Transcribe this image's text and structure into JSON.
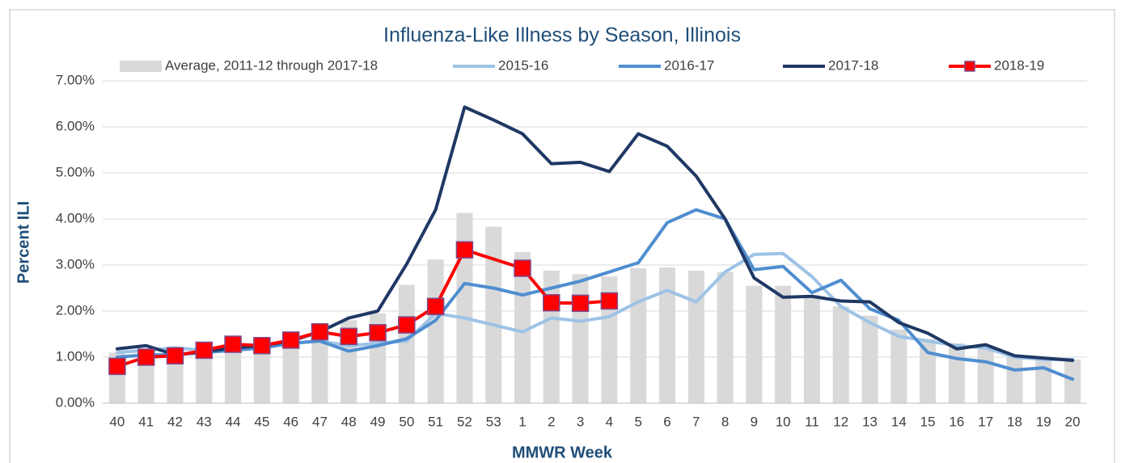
{
  "chart_data": {
    "type": "bar",
    "title": "Influenza-Like Illness by Season, Illinois",
    "x_label": "MMWR Week",
    "y_label": "Percent ILI",
    "categories": [
      "40",
      "41",
      "42",
      "43",
      "44",
      "45",
      "46",
      "47",
      "48",
      "49",
      "50",
      "51",
      "52",
      "53",
      "1",
      "2",
      "3",
      "4",
      "5",
      "6",
      "7",
      "8",
      "9",
      "10",
      "11",
      "12",
      "13",
      "14",
      "15",
      "16",
      "17",
      "18",
      "19",
      "20"
    ],
    "ylim": [
      0,
      7
    ],
    "yticks": [
      {
        "value": 0,
        "label": "0.00%"
      },
      {
        "value": 1,
        "label": "1.00%"
      },
      {
        "value": 2,
        "label": "2.00%"
      },
      {
        "value": 3,
        "label": "3.00%"
      },
      {
        "value": 4,
        "label": "4.00%"
      },
      {
        "value": 5,
        "label": "5.00%"
      },
      {
        "value": 6,
        "label": "6.00%"
      },
      {
        "value": 7,
        "label": "7.00%"
      }
    ],
    "grid": true,
    "legend": "top",
    "series": [
      {
        "name": "Average, 2011-12 through 2017-18",
        "type": "bar",
        "color": "#d9d9d9",
        "values": [
          1.1,
          1.1,
          1.15,
          1.15,
          1.2,
          1.25,
          1.35,
          1.45,
          1.8,
          1.95,
          2.57,
          3.12,
          4.13,
          3.83,
          3.28,
          2.88,
          2.8,
          2.75,
          2.93,
          2.95,
          2.88,
          2.85,
          2.55,
          2.55,
          2.35,
          2.1,
          1.9,
          1.6,
          1.4,
          1.3,
          1.2,
          1.0,
          0.95,
          0.95
        ]
      },
      {
        "name": "2015-16",
        "type": "line",
        "color": "#9dc3e6",
        "values": [
          1.1,
          1.15,
          1.2,
          1.15,
          1.2,
          1.2,
          1.3,
          1.35,
          1.25,
          1.3,
          1.35,
          1.95,
          1.85,
          1.7,
          1.55,
          1.85,
          1.78,
          1.88,
          2.2,
          2.45,
          2.2,
          2.85,
          3.23,
          3.25,
          2.75,
          2.1,
          1.75,
          1.45,
          1.35,
          1.25,
          1.2,
          1.0,
          0.95,
          0.95
        ]
      },
      {
        "name": "2016-17",
        "type": "line",
        "color": "#4f8ed0",
        "values": [
          1.0,
          1.05,
          1.05,
          1.1,
          1.15,
          1.2,
          1.3,
          1.35,
          1.13,
          1.25,
          1.4,
          1.8,
          2.6,
          2.5,
          2.35,
          2.5,
          2.65,
          2.85,
          3.05,
          3.92,
          4.2,
          4.0,
          2.9,
          2.97,
          2.4,
          2.67,
          2.05,
          1.8,
          1.1,
          0.97,
          0.9,
          0.72,
          0.77,
          0.52
        ]
      },
      {
        "name": "2017-18",
        "type": "line",
        "color": "#1f3864",
        "values": [
          1.18,
          1.25,
          1.05,
          1.12,
          1.2,
          1.25,
          1.35,
          1.55,
          1.85,
          2.0,
          3.02,
          4.2,
          6.43,
          6.15,
          5.85,
          5.2,
          5.23,
          5.03,
          5.85,
          5.58,
          4.93,
          4.0,
          2.72,
          2.3,
          2.32,
          2.22,
          2.2,
          1.75,
          1.52,
          1.18,
          1.27,
          1.03,
          0.98,
          0.93
        ]
      },
      {
        "name": "2018-19",
        "type": "line",
        "color": "#ff0000",
        "marker": "square",
        "marker_edge": "#7f4a8c",
        "span_gaps": true,
        "values": [
          0.8,
          1.0,
          1.03,
          1.15,
          1.28,
          1.25,
          1.37,
          1.55,
          1.45,
          1.53,
          1.7,
          2.1,
          3.33,
          null,
          2.93,
          2.18,
          2.17,
          2.22,
          null,
          null,
          null,
          null,
          null,
          null,
          null,
          null,
          null,
          null,
          null,
          null,
          null,
          null,
          null,
          null
        ]
      }
    ]
  }
}
